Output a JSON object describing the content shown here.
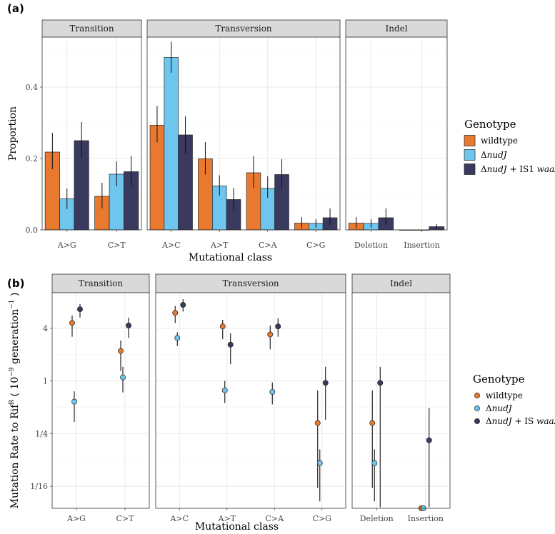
{
  "colors": {
    "wildtype": "#E8792F",
    "nudJ": "#6EC6EE",
    "nudJ_waaZ": "#3A3A60",
    "strip_bg": "#D9D9D9",
    "grid": "#EBEBEB"
  },
  "chart_data": [
    {
      "panel_label": "(a)",
      "type": "bar",
      "xlabel": "Mutational class",
      "ylabel": "Proportion",
      "ylim": [
        0,
        0.54
      ],
      "yticks": [
        {
          "v": 0.0,
          "label": "0.0"
        },
        {
          "v": 0.2,
          "label": "0.2"
        },
        {
          "v": 0.4,
          "label": "0.4"
        }
      ],
      "facets": [
        {
          "label": "Transition",
          "categories": [
            "A>G",
            "C>T"
          ]
        },
        {
          "label": "Transversion",
          "categories": [
            "A>C",
            "A>T",
            "C>A",
            "C>G"
          ]
        },
        {
          "label": "Indel",
          "categories": [
            "Deletion",
            "Insertion"
          ]
        }
      ],
      "legend": {
        "title": "Genotype",
        "entries": [
          {
            "key": "wildtype",
            "pre": "",
            "italic": "",
            "post": "wildtype"
          },
          {
            "key": "nudJ",
            "pre": "Δ",
            "italic": "nudJ",
            "post": ""
          },
          {
            "key": "nudJ_waaZ",
            "pre": "Δ",
            "italic": "nudJ",
            "post": " + IS1 ",
            "italic2": "waaZ"
          }
        ]
      },
      "series": [
        {
          "name": "wildtype",
          "values": [
            0.218,
            0.094,
            0.293,
            0.199,
            0.16,
            0.019,
            0.019,
            0.0
          ],
          "lo": [
            0.17,
            0.06,
            0.245,
            0.155,
            0.118,
            0.004,
            0.004,
            0.0
          ],
          "hi": [
            0.272,
            0.132,
            0.347,
            0.246,
            0.207,
            0.036,
            0.036,
            0.0
          ]
        },
        {
          "name": "nudJ",
          "values": [
            0.087,
            0.156,
            0.483,
            0.123,
            0.116,
            0.018,
            0.018,
            0.0
          ],
          "lo": [
            0.058,
            0.122,
            0.44,
            0.096,
            0.09,
            0.006,
            0.006,
            0.0
          ],
          "hi": [
            0.116,
            0.192,
            0.527,
            0.153,
            0.15,
            0.03,
            0.03,
            0.0
          ]
        },
        {
          "name": "nudJ_waaZ",
          "values": [
            0.25,
            0.163,
            0.266,
            0.085,
            0.155,
            0.034,
            0.034,
            0.009
          ],
          "lo": [
            0.202,
            0.122,
            0.214,
            0.057,
            0.115,
            0.013,
            0.013,
            0.001
          ],
          "hi": [
            0.302,
            0.207,
            0.318,
            0.118,
            0.198,
            0.06,
            0.06,
            0.016
          ]
        }
      ]
    },
    {
      "panel_label": "(b)",
      "type": "scatter",
      "xlabel": "Mutational class",
      "ylabel_main": "Mutation Rate to Rif",
      "ylabel_sup": "R",
      "ylabel_paren_open": " ( 10",
      "ylabel_exp": "−9",
      "ylabel_mid": " generation",
      "ylabel_exp2": "−1",
      "ylabel_paren_close": " )",
      "y_scale": "log2",
      "ylim": [
        0.035,
        10.2
      ],
      "yticks": [
        {
          "v": 4,
          "label": "4"
        },
        {
          "v": 1,
          "label": "1"
        },
        {
          "v": 0.25,
          "label": "1/4"
        },
        {
          "v": 0.0625,
          "label": "1/16"
        }
      ],
      "facets": [
        {
          "label": "Transition",
          "categories": [
            "A>G",
            "C>T"
          ]
        },
        {
          "label": "Transversion",
          "categories": [
            "A>C",
            "A>T",
            "C>A",
            "C>G"
          ]
        },
        {
          "label": "Indel",
          "categories": [
            "Deletion",
            "Insertion"
          ]
        }
      ],
      "legend": {
        "title": "Genotype",
        "entries": [
          {
            "key": "wildtype",
            "pre": "",
            "italic": "",
            "post": "wildtype"
          },
          {
            "key": "nudJ",
            "pre": "Δ",
            "italic": "nudJ",
            "post": ""
          },
          {
            "key": "nudJ_waaZ",
            "pre": "Δ",
            "italic": "nudJ",
            "post": " + IS ",
            "italic2": "waaZ"
          }
        ]
      },
      "series": [
        {
          "name": "wildtype",
          "values": [
            4.6,
            2.2,
            6.0,
            4.2,
            3.4,
            0.33,
            0.33,
            0.034
          ],
          "lo": [
            3.2,
            1.3,
            4.6,
            3.0,
            2.3,
            0.06,
            0.06,
            0.034
          ],
          "hi": [
            5.6,
            2.9,
            7.2,
            5.0,
            4.3,
            0.78,
            0.78,
            0.034
          ]
        },
        {
          "name": "nudJ",
          "values": [
            0.58,
            1.1,
            3.1,
            0.78,
            0.75,
            0.115,
            0.115,
            0.034
          ],
          "lo": [
            0.34,
            0.74,
            2.5,
            0.56,
            0.54,
            0.042,
            0.042,
            0.034
          ],
          "hi": [
            0.76,
            1.45,
            3.6,
            1.0,
            0.96,
            0.165,
            0.165,
            0.034
          ]
        },
        {
          "name": "nudJ_waaZ",
          "values": [
            6.6,
            4.3,
            7.4,
            2.6,
            4.2,
            0.95,
            0.95,
            0.21
          ],
          "lo": [
            5.3,
            3.1,
            6.2,
            1.55,
            3.2,
            0.36,
            0.036,
            0.036
          ],
          "hi": [
            7.6,
            5.3,
            8.6,
            3.5,
            5.2,
            1.45,
            1.45,
            0.49
          ]
        }
      ]
    }
  ]
}
